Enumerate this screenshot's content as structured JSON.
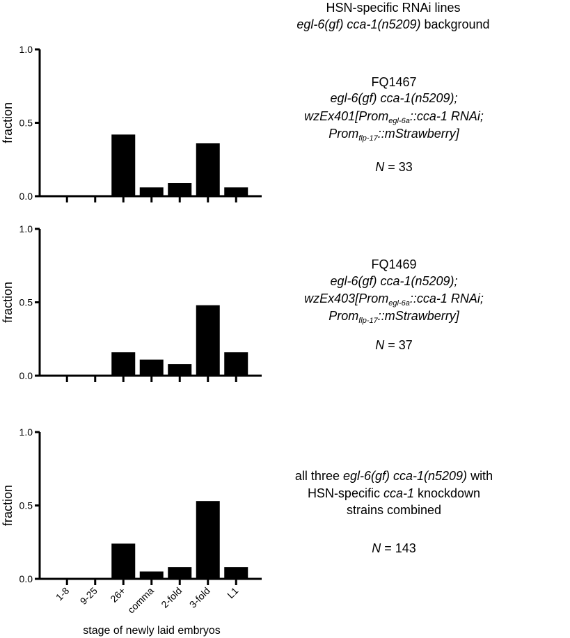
{
  "header": {
    "line1": "HSN-specific RNAi lines",
    "line2_italic": "egl-6(gf) cca-1(n5209)",
    "line2_rest": " background"
  },
  "chart_data": [
    {
      "type": "bar",
      "categories": [
        "1-8",
        "9-25",
        "26+",
        "comma",
        "2-fold",
        "3-fold",
        "L1"
      ],
      "values": [
        0,
        0,
        0.42,
        0.06,
        0.09,
        0.36,
        0.06
      ],
      "ylabel": "fraction",
      "ylim": [
        0,
        1
      ],
      "yticks": [
        "0.0",
        "0.5",
        "1.0"
      ],
      "annotation": {
        "strain": "FQ1467",
        "genotype": "egl-6(gf) cca-1(n5209);",
        "array_name": "wzEx401",
        "prom_a_main": "Prom",
        "prom_a_sub": "egl-6a",
        "prom_a_rest": "::cca-1 RNAi;",
        "prom_b_main": "Prom",
        "prom_b_sub": "flp-17",
        "prom_b_rest": "::mStrawberry]",
        "n_label": "N",
        "n_value": " = 33"
      }
    },
    {
      "type": "bar",
      "categories": [
        "1-8",
        "9-25",
        "26+",
        "comma",
        "2-fold",
        "3-fold",
        "L1"
      ],
      "values": [
        0,
        0,
        0.16,
        0.11,
        0.08,
        0.48,
        0.16
      ],
      "ylabel": "fraction",
      "ylim": [
        0,
        1
      ],
      "yticks": [
        "0.0",
        "0.5",
        "1.0"
      ],
      "annotation": {
        "strain": "FQ1469",
        "genotype": "egl-6(gf) cca-1(n5209);",
        "array_name": "wzEx403",
        "prom_a_main": "Prom",
        "prom_a_sub": "egl-6a",
        "prom_a_rest": "::cca-1 RNAi;",
        "prom_b_main": "Prom",
        "prom_b_sub": "flp-17",
        "prom_b_rest": "::mStrawberry]",
        "n_label": "N",
        "n_value": " = 37"
      }
    },
    {
      "type": "bar",
      "categories": [
        "1-8",
        "9-25",
        "26+",
        "comma",
        "2-fold",
        "3-fold",
        "L1"
      ],
      "values": [
        0,
        0,
        0.24,
        0.05,
        0.08,
        0.53,
        0.08
      ],
      "ylabel": "fraction",
      "xlabel": "stage of newly laid embryos",
      "ylim": [
        0,
        1
      ],
      "yticks": [
        "0.0",
        "0.5",
        "1.0"
      ],
      "annotation": {
        "line1_pre": "all three ",
        "line1_italic": "egl-6(gf) cca-1(n5209)",
        "line1_post": " with",
        "line2_pre": "HSN-specific ",
        "line2_italic": "cca-1",
        "line2_post": " knockdown",
        "line3": "strains combined",
        "n_label": "N",
        "n_value": " = 143"
      }
    }
  ]
}
